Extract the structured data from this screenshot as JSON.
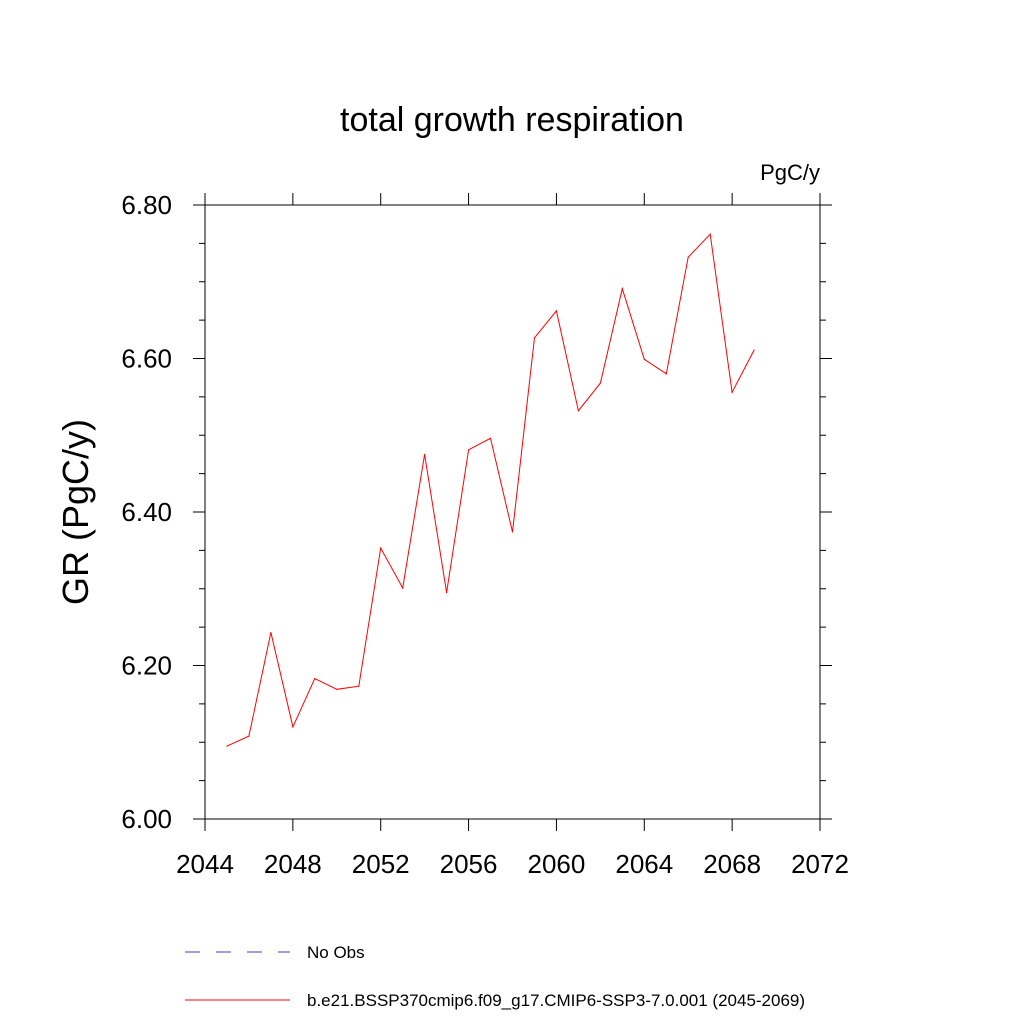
{
  "chart_data": {
    "type": "line",
    "title": "total growth respiration",
    "units_label": "PgC/y",
    "xlabel": "",
    "ylabel": "GR  (PgC/y)",
    "xlim": [
      2044,
      2072
    ],
    "ylim": [
      6.0,
      6.8
    ],
    "x_ticks": [
      2044,
      2048,
      2052,
      2056,
      2060,
      2064,
      2068,
      2072
    ],
    "x_tick_labels": [
      "2044",
      "2048",
      "2052",
      "2056",
      "2060",
      "2064",
      "2068",
      "2072"
    ],
    "y_ticks": [
      6.0,
      6.2,
      6.4,
      6.6,
      6.8
    ],
    "y_tick_labels": [
      "6.00",
      "6.20",
      "6.40",
      "6.60",
      "6.80"
    ],
    "grid": false,
    "series": [
      {
        "name": "b.e21.BSSP370cmip6.f09_g17.CMIP6-SSP3-7.0.001 (2045-2069)",
        "color": "#ff0000",
        "x": [
          2045,
          2046,
          2047,
          2048,
          2049,
          2050,
          2051,
          2052,
          2053,
          2054,
          2055,
          2056,
          2057,
          2058,
          2059,
          2060,
          2061,
          2062,
          2063,
          2064,
          2065,
          2066,
          2067,
          2068,
          2069
        ],
        "y": [
          6.095,
          6.108,
          6.243,
          6.12,
          6.183,
          6.169,
          6.173,
          6.353,
          6.301,
          6.475,
          6.295,
          6.481,
          6.496,
          6.374,
          6.627,
          6.662,
          6.532,
          6.568,
          6.691,
          6.599,
          6.58,
          6.732,
          6.762,
          6.556,
          6.611
        ]
      }
    ],
    "legend": {
      "placement": "bottom",
      "entries": [
        {
          "label": "No Obs",
          "color": "#4040c0",
          "style": "dashed"
        },
        {
          "label": "b.e21.BSSP370cmip6.f09_g17.CMIP6-SSP3-7.0.001 (2045-2069)",
          "color": "#ff0000",
          "style": "solid"
        }
      ]
    }
  }
}
